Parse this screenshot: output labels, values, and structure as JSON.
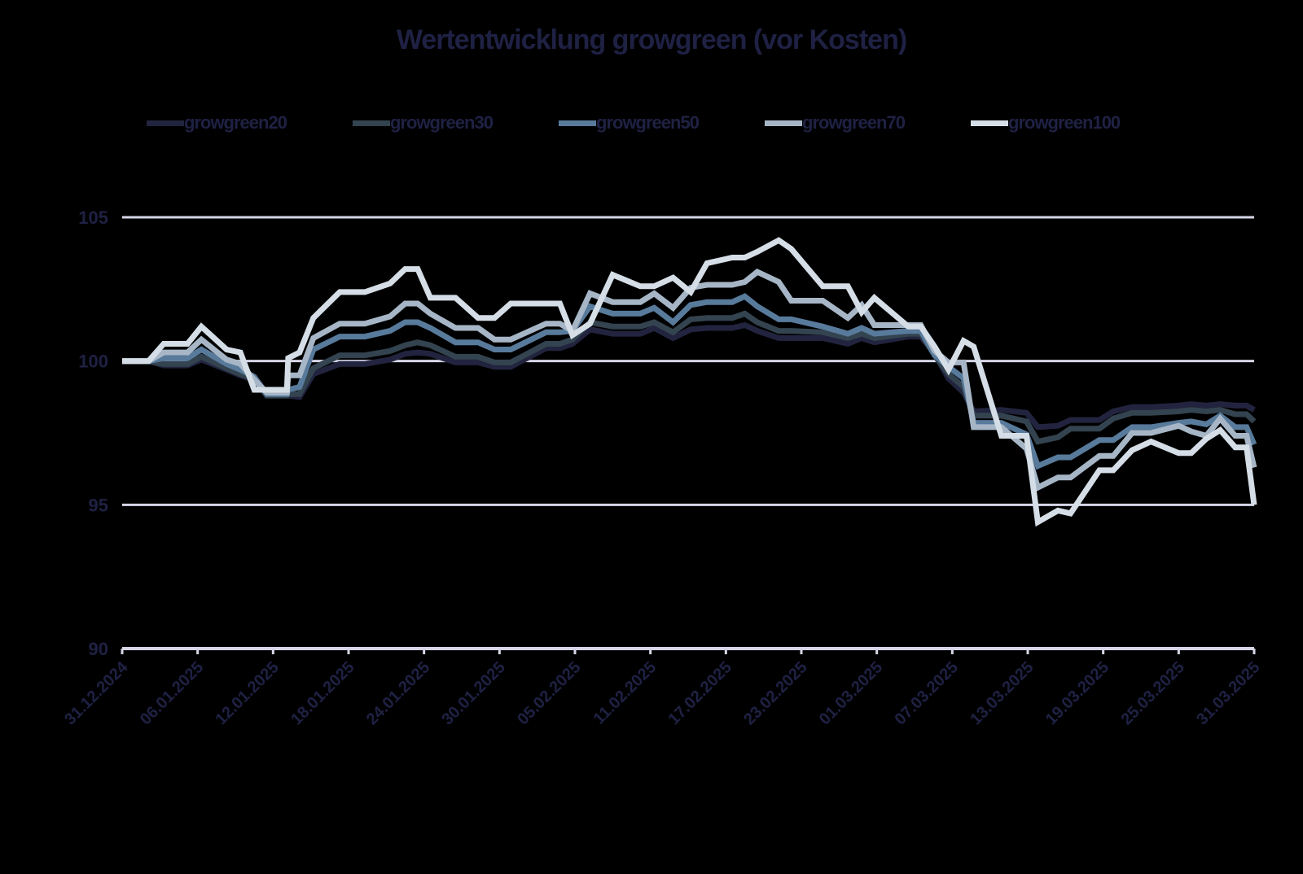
{
  "chart_data": {
    "type": "line",
    "title": "Wertentwicklung growgreen (vor Kosten)",
    "xlabel": "",
    "ylabel": "",
    "ylim": [
      90,
      105
    ],
    "yticks": [
      90,
      95,
      100,
      105
    ],
    "grid": true,
    "legend_position": "top",
    "x_tick_labels": [
      "31.12.2024",
      "06.01.2025",
      "12.01.2025",
      "18.01.2025",
      "24.01.2025",
      "30.01.2025",
      "05.02.2025",
      "11.02.2025",
      "17.02.2025",
      "23.02.2025",
      "01.03.2025",
      "07.03.2025",
      "13.03.2025",
      "19.03.2025",
      "25.03.2025",
      "31.03.2025"
    ],
    "x_tick_days": [
      0,
      6,
      12,
      18,
      24,
      30,
      36,
      42,
      48,
      54,
      60,
      66,
      72,
      78,
      84,
      90
    ],
    "base_days": [
      0,
      2.1,
      3.3,
      5.2,
      6.3,
      8.3,
      9.4,
      10.5,
      11.5,
      12.3,
      13.1,
      13.2,
      14.1,
      15.2,
      17.3,
      19.3,
      21.3,
      22.5,
      23.5,
      24.5,
      26.5,
      28.3,
      29.6,
      30.9,
      33.7,
      34.8,
      35.8,
      37.2,
      39.0,
      41.2,
      42.3,
      43.8,
      45.2,
      46.5,
      48.5,
      49.5,
      50.5,
      52.2,
      53.2,
      55.7,
      57.7,
      58.8,
      59.8,
      62.5,
      63.5,
      64.6,
      65.7,
      66.9,
      67.7,
      69.9,
      71.9,
      72.8,
      74.4,
      75.4,
      77.7,
      78.8,
      80.3,
      81.8,
      84.0,
      85.0,
      86.2,
      87.3,
      88.5,
      89.4,
      90.0
    ],
    "series": [
      {
        "name": "growgreen20",
        "color": "#22243f",
        "values": [
          100.0,
          100.0,
          99.85,
          99.85,
          100.05,
          99.7,
          99.5,
          99.35,
          98.8,
          98.8,
          98.8,
          98.8,
          98.75,
          99.55,
          99.9,
          99.9,
          100.05,
          100.25,
          100.3,
          100.25,
          99.95,
          99.95,
          99.8,
          99.8,
          100.45,
          100.45,
          100.6,
          101.1,
          100.95,
          100.95,
          101.15,
          100.8,
          101.1,
          101.15,
          101.15,
          101.25,
          101.05,
          100.8,
          100.8,
          100.8,
          100.6,
          100.8,
          100.65,
          100.85,
          100.85,
          100.25,
          99.4,
          98.9,
          98.25,
          98.3,
          98.2,
          97.7,
          97.75,
          97.95,
          97.95,
          98.25,
          98.4,
          98.4,
          98.45,
          98.5,
          98.45,
          98.5,
          98.45,
          98.45,
          98.3
        ]
      },
      {
        "name": "growgreen30",
        "color": "#33434f",
        "values": [
          100.0,
          100.0,
          99.9,
          99.9,
          100.15,
          99.75,
          99.55,
          99.4,
          98.8,
          98.8,
          98.8,
          98.85,
          98.85,
          99.75,
          100.2,
          100.2,
          100.35,
          100.55,
          100.65,
          100.55,
          100.15,
          100.15,
          99.95,
          99.95,
          100.6,
          100.6,
          100.75,
          101.35,
          101.2,
          101.2,
          101.35,
          101.0,
          101.45,
          101.5,
          101.5,
          101.65,
          101.35,
          101.05,
          101.05,
          101.0,
          100.8,
          100.95,
          100.8,
          100.95,
          100.95,
          100.2,
          99.55,
          99.1,
          98.1,
          98.1,
          97.9,
          97.2,
          97.35,
          97.65,
          97.65,
          98.0,
          98.2,
          98.2,
          98.25,
          98.3,
          98.25,
          98.3,
          98.15,
          98.15,
          97.9
        ]
      },
      {
        "name": "growgreen50",
        "color": "#587a9b",
        "values": [
          100.0,
          100.0,
          100.1,
          100.1,
          100.4,
          99.9,
          99.7,
          99.45,
          98.85,
          98.85,
          98.85,
          99.0,
          99.1,
          100.4,
          100.85,
          100.85,
          101.05,
          101.35,
          101.35,
          101.15,
          100.65,
          100.65,
          100.4,
          100.4,
          101.0,
          101.0,
          101.05,
          101.9,
          101.65,
          101.65,
          101.85,
          101.35,
          101.95,
          102.05,
          102.05,
          102.25,
          101.9,
          101.45,
          101.45,
          101.2,
          100.95,
          101.15,
          100.95,
          101.05,
          101.05,
          100.2,
          99.8,
          99.4,
          97.85,
          97.85,
          97.45,
          96.35,
          96.65,
          96.65,
          97.25,
          97.25,
          97.7,
          97.7,
          97.85,
          97.9,
          97.8,
          98.1,
          97.7,
          97.7,
          97.1
        ]
      },
      {
        "name": "growgreen70",
        "color": "#a7b6c6",
        "values": [
          100.0,
          100.0,
          100.3,
          100.3,
          100.75,
          100.05,
          99.9,
          99.35,
          98.9,
          98.9,
          98.9,
          99.5,
          99.5,
          100.8,
          101.3,
          101.3,
          101.55,
          102.0,
          102.0,
          101.65,
          101.15,
          101.15,
          100.75,
          100.75,
          101.3,
          101.3,
          101.05,
          102.35,
          102.05,
          102.05,
          102.35,
          101.85,
          102.55,
          102.65,
          102.65,
          102.75,
          103.1,
          102.75,
          102.1,
          102.1,
          101.5,
          101.95,
          101.25,
          101.25,
          101.25,
          100.35,
          99.95,
          99.95,
          97.7,
          97.7,
          96.95,
          95.6,
          95.95,
          95.95,
          96.7,
          96.7,
          97.5,
          97.5,
          97.75,
          97.55,
          97.4,
          98.0,
          97.4,
          97.4,
          96.3
        ]
      },
      {
        "name": "growgreen100",
        "color": "#d5dee6",
        "values": [
          100.0,
          100.0,
          100.6,
          100.6,
          101.2,
          100.4,
          100.3,
          99.0,
          99.0,
          99.0,
          99.0,
          100.1,
          100.3,
          101.5,
          102.4,
          102.4,
          102.7,
          103.2,
          103.2,
          102.2,
          102.2,
          101.5,
          101.5,
          102.0,
          102.0,
          102.0,
          100.9,
          101.3,
          103.0,
          102.6,
          102.6,
          102.9,
          102.4,
          103.4,
          103.6,
          103.6,
          103.8,
          104.2,
          103.9,
          102.6,
          102.6,
          101.7,
          102.2,
          101.2,
          101.2,
          100.5,
          99.7,
          100.7,
          100.5,
          97.4,
          97.4,
          94.4,
          94.8,
          94.7,
          96.2,
          96.2,
          96.9,
          97.2,
          96.8,
          96.8,
          97.3,
          97.6,
          97.0,
          97.0,
          95.0
        ]
      }
    ]
  },
  "ui": {
    "title": "Wertentwicklung growgreen (vor Kosten)",
    "legend": [
      {
        "label": "growgreen20",
        "color": "#22243f"
      },
      {
        "label": "growgreen30",
        "color": "#33434f"
      },
      {
        "label": "growgreen50",
        "color": "#587a9b"
      },
      {
        "label": "growgreen70",
        "color": "#a7b6c6"
      },
      {
        "label": "growgreen100",
        "color": "#d5dee6"
      }
    ],
    "colors": {
      "text": "#1f2144",
      "grid": "#d6d6e8",
      "background": "#000000"
    }
  }
}
